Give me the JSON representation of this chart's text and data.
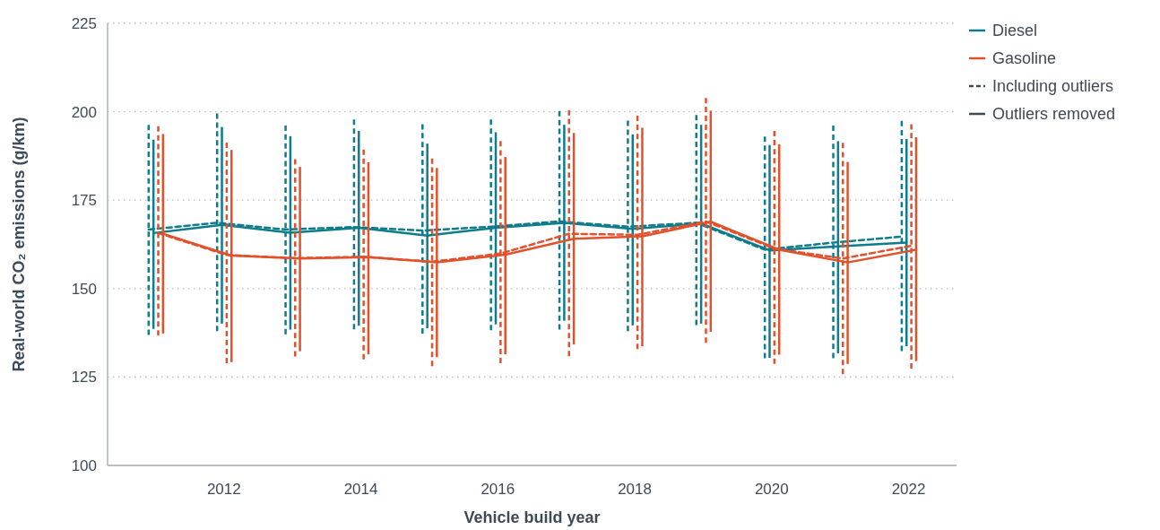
{
  "chart_data": {
    "type": "line",
    "xlabel": "Vehicle build year",
    "ylabel": "Real-world CO₂ emissions (g/km)",
    "xlim": [
      2010.3,
      2022.7
    ],
    "xticks": [
      2012,
      2014,
      2016,
      2018,
      2020,
      2022
    ],
    "ylim": [
      100,
      225
    ],
    "yticks": [
      100,
      125,
      150,
      175,
      200,
      225
    ],
    "grid": "y",
    "legend": "top right",
    "marker": "none",
    "series": [
      {
        "color": "#0e7c8b",
        "line_style": "dashed",
        "x": [
          2010.9,
          2011.9,
          2012.9,
          2013.9,
          2014.9,
          2015.9,
          2016.9,
          2017.9,
          2018.9,
          2019.9,
          2020.9,
          2021.9
        ],
        "values": [
          166.7,
          168.6,
          166.7,
          167.4,
          166.4,
          167.5,
          169.0,
          167.5,
          168.6,
          161.0,
          163.0,
          164.7
        ],
        "errors": [
          [
            136.9,
            196.3
          ],
          [
            138.0,
            199.5
          ],
          [
            137.1,
            196.1
          ],
          [
            138.5,
            197.8
          ],
          [
            137.3,
            196.5
          ],
          [
            138.2,
            197.8
          ],
          [
            138.4,
            200.2
          ],
          [
            138.0,
            197.5
          ],
          [
            139.7,
            199.1
          ],
          [
            130.3,
            193.0
          ],
          [
            130.3,
            196.1
          ],
          [
            132.3,
            197.4
          ]
        ]
      },
      {
        "name": "Diesel",
        "color": "#0e7c8b",
        "line_style": "solid",
        "x": [
          2010.97,
          2011.97,
          2012.97,
          2013.97,
          2014.97,
          2015.97,
          2016.97,
          2017.97,
          2018.97,
          2019.97,
          2020.97,
          2021.97
        ],
        "values": [
          165.7,
          168.0,
          165.8,
          167.2,
          165.0,
          167.2,
          168.6,
          166.9,
          168.4,
          160.8,
          161.9,
          163.0
        ],
        "errors": [
          [
            138.6,
            192.1
          ],
          [
            140.1,
            195.7
          ],
          [
            138.4,
            193.1
          ],
          [
            139.5,
            194.6
          ],
          [
            138.8,
            191.0
          ],
          [
            139.9,
            194.2
          ],
          [
            140.9,
            196.3
          ],
          [
            139.6,
            193.6
          ],
          [
            140.1,
            196.3
          ],
          [
            130.4,
            190.6
          ],
          [
            131.7,
            191.7
          ],
          [
            133.7,
            192.3
          ]
        ]
      },
      {
        "color": "#e2512b",
        "line_style": "dashed",
        "x": [
          2011.04,
          2012.04,
          2013.04,
          2014.04,
          2015.04,
          2016.04,
          2017.04,
          2018.04,
          2019.04,
          2020.04,
          2021.04,
          2022.04
        ],
        "values": [
          165.7,
          159.5,
          158.6,
          159.0,
          157.6,
          159.9,
          165.5,
          165.2,
          169.0,
          161.3,
          158.5,
          162.1
        ],
        "errors": [
          [
            136.7,
            195.9
          ],
          [
            128.9,
            191.3
          ],
          [
            130.8,
            186.6
          ],
          [
            130.0,
            189.3
          ],
          [
            128.1,
            186.8
          ],
          [
            128.9,
            191.7
          ],
          [
            130.9,
            200.5
          ],
          [
            132.9,
            198.9
          ],
          [
            134.7,
            203.9
          ],
          [
            128.7,
            194.6
          ],
          [
            125.8,
            191.2
          ],
          [
            127.4,
            196.5
          ]
        ]
      },
      {
        "name": "Gasoline",
        "color": "#e2512b",
        "line_style": "solid",
        "x": [
          2011.11,
          2012.11,
          2013.11,
          2014.11,
          2015.11,
          2016.11,
          2017.11,
          2018.11,
          2019.11,
          2020.11,
          2021.11,
          2022.11
        ],
        "values": [
          165.5,
          159.3,
          158.5,
          158.9,
          157.4,
          159.6,
          164.1,
          164.8,
          168.9,
          161.0,
          157.4,
          161.0
        ],
        "errors": [
          [
            137.3,
            193.7
          ],
          [
            129.2,
            189.2
          ],
          [
            132.3,
            184.4
          ],
          [
            131.4,
            185.7
          ],
          [
            130.6,
            184.1
          ],
          [
            131.4,
            187.2
          ],
          [
            134.2,
            194.0
          ],
          [
            133.7,
            195.5
          ],
          [
            137.8,
            200.3
          ],
          [
            131.3,
            190.8
          ],
          [
            128.7,
            185.8
          ],
          [
            129.5,
            192.8
          ]
        ]
      }
    ],
    "annotations": [
      "Including outliers",
      "Outliers removed"
    ]
  }
}
